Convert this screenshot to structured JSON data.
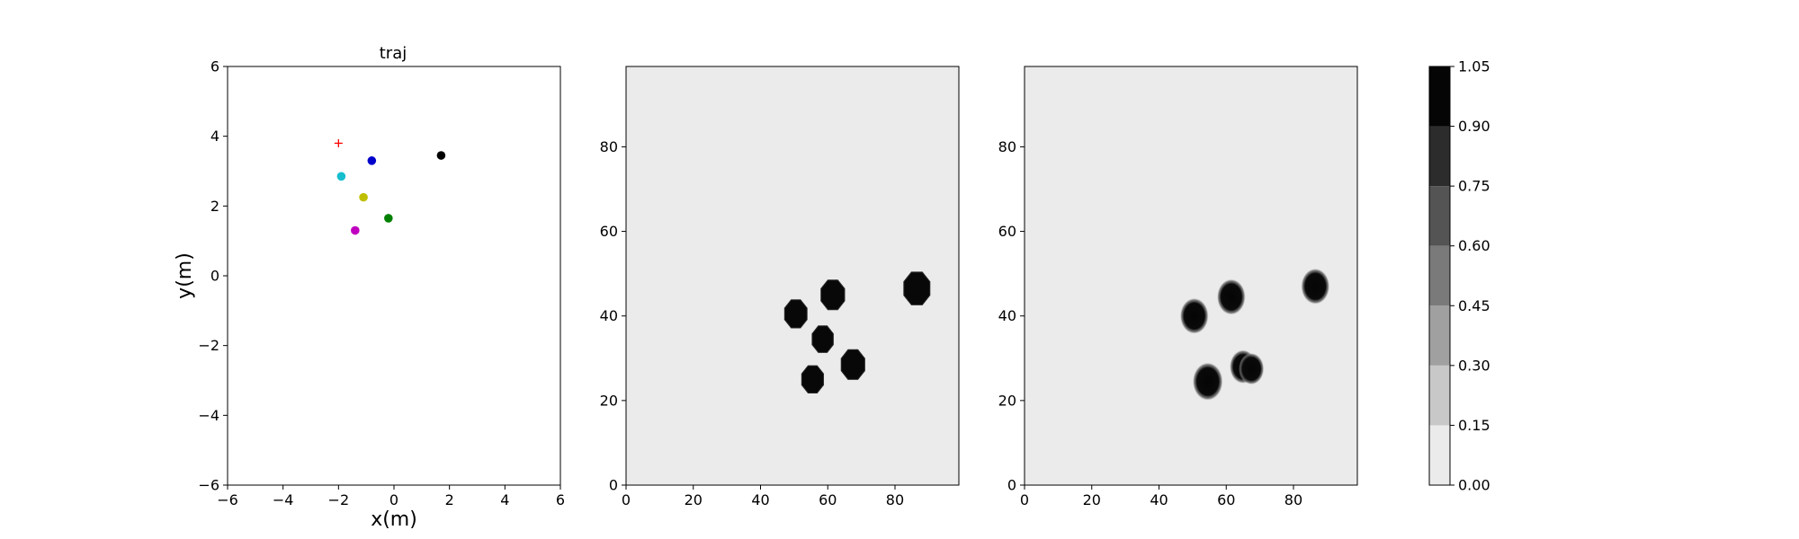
{
  "colors": {
    "background": "#ffffff",
    "map_background": "#ebebeb",
    "frame": "#000000",
    "colorbar_levels": [
      "#ebebeb",
      "#c8c8c8",
      "#a0a0a0",
      "#7a7a7a",
      "#545454",
      "#2c2c2c",
      "#050505"
    ]
  },
  "chart_data": [
    {
      "type": "scatter",
      "title": "traj",
      "xlabel": "x(m)",
      "ylabel": "y(m)",
      "xlim": [
        -6,
        6
      ],
      "ylim": [
        -6,
        6
      ],
      "xticks": [
        -6,
        -4,
        -2,
        0,
        2,
        4,
        6
      ],
      "yticks": [
        -6,
        -4,
        -2,
        0,
        2,
        4,
        6
      ],
      "xtick_labels": [
        "−6",
        "−4",
        "−2",
        "0",
        "2",
        "4",
        "6"
      ],
      "ytick_labels": [
        "−6",
        "−4",
        "−2",
        "0",
        "2",
        "4",
        "6"
      ],
      "grid": false,
      "points": [
        {
          "x": -2.0,
          "y": 3.8,
          "color": "#ff0000",
          "marker": "plus"
        },
        {
          "x": 1.7,
          "y": 3.45,
          "color": "#000000",
          "marker": "circle"
        },
        {
          "x": -0.8,
          "y": 3.3,
          "color": "#0000cc",
          "marker": "circle"
        },
        {
          "x": -1.9,
          "y": 2.85,
          "color": "#17becf",
          "marker": "circle"
        },
        {
          "x": -1.1,
          "y": 2.25,
          "color": "#bfbf00",
          "marker": "circle"
        },
        {
          "x": -0.2,
          "y": 1.65,
          "color": "#008000",
          "marker": "circle"
        },
        {
          "x": -1.4,
          "y": 1.3,
          "color": "#bf00bf",
          "marker": "circle"
        }
      ]
    },
    {
      "type": "heatmap",
      "xlim": [
        0,
        99
      ],
      "ylim": [
        0,
        99
      ],
      "xticks": [
        0,
        20,
        40,
        60,
        80
      ],
      "yticks": [
        0,
        20,
        40,
        60,
        80
      ],
      "blobs": [
        {
          "x": 50.5,
          "y": 40.5,
          "r": 3.6,
          "style": "octagon"
        },
        {
          "x": 61.5,
          "y": 45.0,
          "r": 3.8,
          "style": "octagon"
        },
        {
          "x": 86.5,
          "y": 46.5,
          "r": 4.2,
          "style": "octagon"
        },
        {
          "x": 58.5,
          "y": 34.5,
          "r": 3.4,
          "style": "octagon"
        },
        {
          "x": 67.5,
          "y": 28.5,
          "r": 3.8,
          "style": "octagon"
        },
        {
          "x": 55.5,
          "y": 25.0,
          "r": 3.5,
          "style": "octagon"
        }
      ]
    },
    {
      "type": "heatmap",
      "xlim": [
        0,
        99
      ],
      "ylim": [
        0,
        99
      ],
      "xticks": [
        0,
        20,
        40,
        60,
        80
      ],
      "yticks": [
        0,
        20,
        40,
        60,
        80
      ],
      "blobs": [
        {
          "x": 50.5,
          "y": 40.0,
          "r": 3.4,
          "style": "soft"
        },
        {
          "x": 61.5,
          "y": 44.5,
          "r": 3.4,
          "style": "soft"
        },
        {
          "x": 86.5,
          "y": 47.0,
          "r": 3.4,
          "style": "soft"
        },
        {
          "x": 54.5,
          "y": 24.5,
          "r": 3.6,
          "style": "soft"
        },
        {
          "x": 65.0,
          "y": 28.0,
          "r": 3.2,
          "style": "soft"
        },
        {
          "x": 67.5,
          "y": 27.5,
          "r": 3.0,
          "style": "soft"
        }
      ]
    },
    {
      "type": "colorbar",
      "levels": [
        0.0,
        0.15,
        0.3,
        0.45,
        0.6,
        0.75,
        0.9,
        1.05
      ],
      "tick_labels": [
        "0.00",
        "0.15",
        "0.30",
        "0.45",
        "0.60",
        "0.75",
        "0.90",
        "1.05"
      ]
    }
  ]
}
